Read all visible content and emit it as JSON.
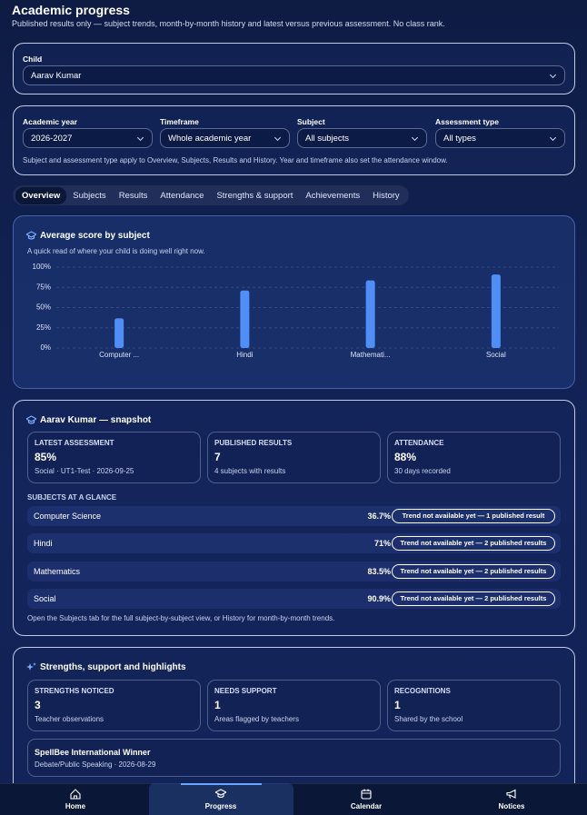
{
  "header": {
    "title": "Academic progress",
    "subtitle": "Published results only — subject trends, month-by-month history and latest versus previous assessment. No class rank."
  },
  "child": {
    "label": "Child",
    "value": "Aarav Kumar"
  },
  "filters": {
    "items": [
      {
        "label": "Academic year",
        "value": "2026-2027"
      },
      {
        "label": "Timeframe",
        "value": "Whole academic year"
      },
      {
        "label": "Subject",
        "value": "All subjects"
      },
      {
        "label": "Assessment type",
        "value": "All types"
      }
    ],
    "note": "Subject and assessment type apply to Overview, Subjects, Results and History. Year and timeframe also set the attendance window."
  },
  "tabs": [
    "Overview",
    "Subjects",
    "Results",
    "Attendance",
    "Strengths & support",
    "Achievements",
    "History"
  ],
  "chart_data": {
    "type": "bar",
    "title": "Average score by subject",
    "subtitle": "A quick read of where your child is doing well right now.",
    "categories": [
      "Computer ...",
      "Hindi",
      "Mathemati...",
      "Social"
    ],
    "values": [
      36.7,
      71,
      83.5,
      90.9
    ],
    "color": "#4f8ef7",
    "ylim": [
      0,
      100
    ],
    "yticks": [
      {
        "value": 0,
        "label": "0%"
      },
      {
        "value": 25,
        "label": "25%"
      },
      {
        "value": 50,
        "label": "50%"
      },
      {
        "value": 75,
        "label": "75%"
      },
      {
        "value": 100,
        "label": "100%"
      }
    ],
    "grid": true
  },
  "snapshot": {
    "title": "Aarav Kumar — snapshot",
    "stats": [
      {
        "label": "LATEST ASSESSMENT",
        "value": "85%",
        "note": "Social · UT1-Test · 2026-09-25"
      },
      {
        "label": "PUBLISHED RESULTS",
        "value": "7",
        "note": "4 subjects with results"
      },
      {
        "label": "ATTENDANCE",
        "value": "88%",
        "note": "30 days recorded"
      }
    ],
    "subjects_heading": "SUBJECTS AT A GLANCE",
    "subjects": [
      {
        "name": "Computer Science",
        "score": "36.7%",
        "trend": "Trend not available yet — 1 published result"
      },
      {
        "name": "Hindi",
        "score": "71%",
        "trend": "Trend not available yet — 2 published results"
      },
      {
        "name": "Mathematics",
        "score": "83.5%",
        "trend": "Trend not available yet — 2 published results"
      },
      {
        "name": "Social",
        "score": "90.9%",
        "trend": "Trend not available yet — 2 published results"
      }
    ],
    "footnote": "Open the Subjects tab for the full subject-by-subject view, or History for month-by-month trends."
  },
  "strengths": {
    "title": "Strengths, support and highlights",
    "stats": [
      {
        "label": "STRENGTHS NOTICED",
        "value": "3",
        "note": "Teacher observations"
      },
      {
        "label": "NEEDS SUPPORT",
        "value": "1",
        "note": "Areas flagged by teachers"
      },
      {
        "label": "RECOGNITIONS",
        "value": "1",
        "note": "Shared by the school"
      }
    ],
    "highlights": [
      {
        "title": "SpellBee International Winner",
        "note": "Debate/Public Speaking · 2026-08-29"
      }
    ]
  },
  "nav": [
    "Home",
    "Progress",
    "Calendar",
    "Notices"
  ]
}
